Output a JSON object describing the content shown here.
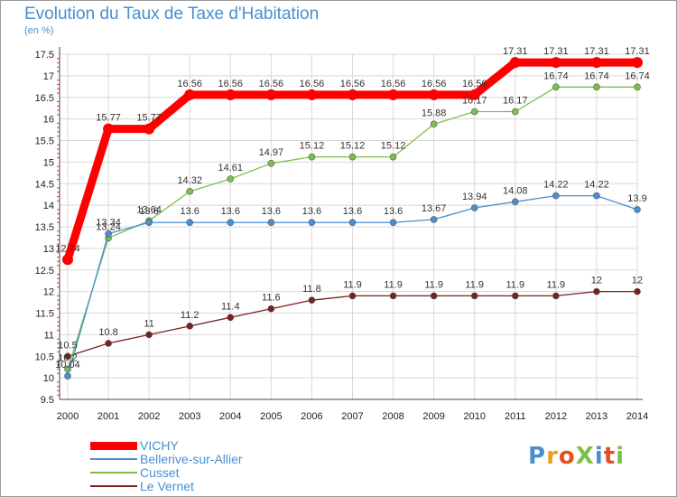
{
  "title": "Evolution du Taux de Taxe d'Habitation",
  "unit_label": "(en %)",
  "logo": {
    "text": "ProXiti",
    "colors": [
      "#4a8fd0",
      "#e8a020",
      "#e05020",
      "#7cc04a",
      "#4a8fd0",
      "#e05020",
      "#7cc04a"
    ]
  },
  "chart_data": {
    "type": "line",
    "title": "Evolution du Taux de Taxe d'Habitation",
    "ylabel": "(en %)",
    "xlabel": "",
    "x": [
      "2000",
      "2001",
      "2002",
      "2003",
      "2004",
      "2005",
      "2006",
      "2007",
      "2008",
      "2009",
      "2010",
      "2011",
      "2012",
      "2013",
      "2014"
    ],
    "ylim": [
      9.5,
      17.5
    ],
    "yticks": [
      "9.5",
      "10",
      "10.5",
      "11",
      "11.5",
      "12",
      "12.5",
      "13",
      "13.5",
      "14",
      "14.5",
      "15",
      "15.5",
      "16",
      "16.5",
      "17",
      "17.5"
    ],
    "grid": true,
    "legend_position": "bottom-left",
    "series": [
      {
        "name": "VICHY",
        "color": "#ff0000",
        "values": [
          12.74,
          15.77,
          15.77,
          16.56,
          16.56,
          16.56,
          16.56,
          16.56,
          16.56,
          16.56,
          16.56,
          17.31,
          17.31,
          17.31,
          17.31
        ],
        "labels": [
          "12.74",
          "15.77",
          "15.77",
          "16.56",
          "16.56",
          "16.56",
          "16.56",
          "16.56",
          "16.56",
          "16.56",
          "16.56",
          "17.31",
          "17.31",
          "17.31",
          "17.31"
        ]
      },
      {
        "name": "Bellerive-sur-Allier",
        "color": "#4a8fd0",
        "values": [
          10.04,
          13.34,
          13.6,
          13.6,
          13.6,
          13.6,
          13.6,
          13.6,
          13.6,
          13.67,
          13.94,
          14.08,
          14.22,
          14.22,
          13.9
        ],
        "labels": [
          "10.04",
          "13.34",
          "13.6",
          "13.6",
          "13.6",
          "13.6",
          "13.6",
          "13.6",
          "13.6",
          "13.67",
          "13.94",
          "14.08",
          "14.22",
          "14.22",
          "13.9"
        ]
      },
      {
        "name": "Cusset",
        "color": "#7cc04a",
        "values": [
          10.2,
          13.24,
          13.64,
          14.32,
          14.61,
          14.97,
          15.12,
          15.12,
          15.12,
          15.88,
          16.17,
          16.17,
          16.74,
          16.74,
          16.74
        ],
        "labels": [
          "10.2",
          "13.24",
          "13.64",
          "14.32",
          "14.61",
          "14.97",
          "15.12",
          "15.12",
          "15.12",
          "15.88",
          "16.17",
          "16.17",
          "16.74",
          "16.74",
          "16.74"
        ]
      },
      {
        "name": "Le Vernet",
        "color": "#7a2020",
        "values": [
          10.5,
          10.8,
          11,
          11.2,
          11.4,
          11.6,
          11.8,
          11.9,
          11.9,
          11.9,
          11.9,
          11.9,
          11.9,
          12,
          12
        ],
        "labels": [
          "10.5",
          "10.8",
          "11",
          "11.2",
          "11.4",
          "11.6",
          "11.8",
          "11.9",
          "11.9",
          "11.9",
          "11.9",
          "11.9",
          "11.9",
          "12",
          "12"
        ]
      }
    ]
  }
}
